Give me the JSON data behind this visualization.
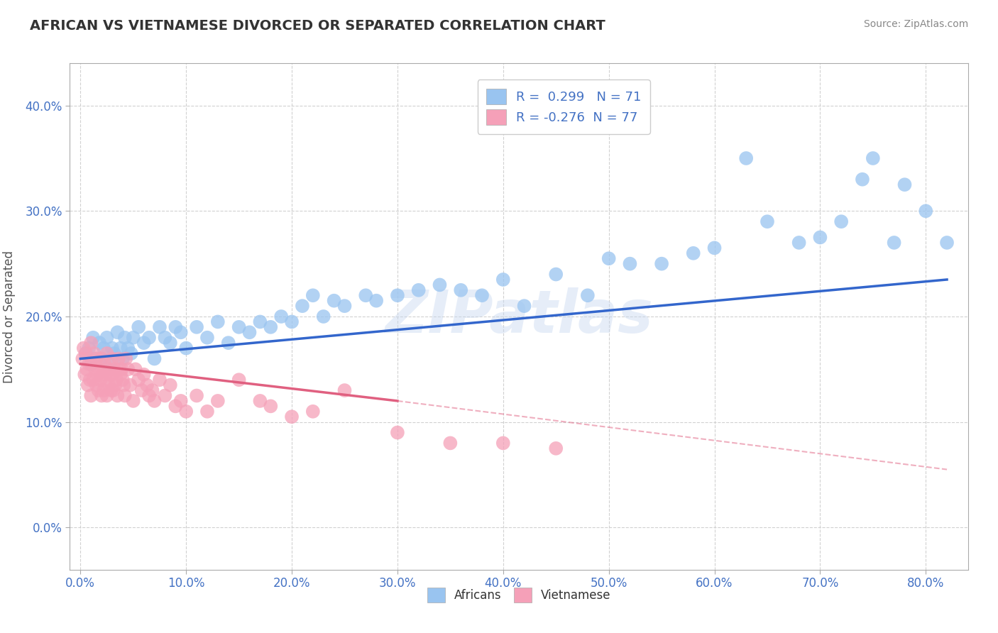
{
  "title": "AFRICAN VS VIETNAMESE DIVORCED OR SEPARATED CORRELATION CHART",
  "source": "Source: ZipAtlas.com",
  "xlabel_ticks": [
    0.0,
    10.0,
    20.0,
    30.0,
    40.0,
    50.0,
    60.0,
    70.0,
    80.0
  ],
  "ylabel_ticks": [
    0.0,
    10.0,
    20.0,
    30.0,
    40.0
  ],
  "xlim": [
    -1.0,
    84
  ],
  "ylim": [
    -4,
    44
  ],
  "african_color": "#99C4F0",
  "vietnamese_color": "#F5A0B8",
  "african_line_color": "#3366CC",
  "vietnamese_line_color": "#E06080",
  "legend_R1": "R =  0.299",
  "legend_N1": "N = 71",
  "legend_R2": "R = -0.276",
  "legend_N2": "N = 77",
  "watermark": "ZIPatlas",
  "african_scatter_x": [
    0.5,
    0.8,
    1.0,
    1.2,
    1.5,
    1.8,
    2.0,
    2.2,
    2.5,
    2.8,
    3.0,
    3.2,
    3.5,
    3.8,
    4.0,
    4.2,
    4.5,
    4.8,
    5.0,
    5.5,
    6.0,
    6.5,
    7.0,
    7.5,
    8.0,
    8.5,
    9.0,
    9.5,
    10.0,
    11.0,
    12.0,
    13.0,
    14.0,
    15.0,
    16.0,
    17.0,
    18.0,
    19.0,
    20.0,
    21.0,
    22.0,
    23.0,
    24.0,
    25.0,
    27.0,
    28.0,
    30.0,
    32.0,
    34.0,
    36.0,
    38.0,
    40.0,
    42.0,
    45.0,
    48.0,
    50.0,
    52.0,
    55.0,
    58.0,
    60.0,
    63.0,
    65.0,
    68.0,
    70.0,
    72.0,
    74.0,
    75.0,
    77.0,
    78.0,
    80.0,
    82.0
  ],
  "african_scatter_y": [
    16.5,
    17.0,
    15.5,
    18.0,
    16.0,
    17.5,
    16.0,
    17.0,
    18.0,
    15.5,
    17.0,
    16.5,
    18.5,
    17.0,
    16.0,
    18.0,
    17.0,
    16.5,
    18.0,
    19.0,
    17.5,
    18.0,
    16.0,
    19.0,
    18.0,
    17.5,
    19.0,
    18.5,
    17.0,
    19.0,
    18.0,
    19.5,
    17.5,
    19.0,
    18.5,
    19.5,
    19.0,
    20.0,
    19.5,
    21.0,
    22.0,
    20.0,
    21.5,
    21.0,
    22.0,
    21.5,
    22.0,
    22.5,
    23.0,
    22.5,
    22.0,
    23.5,
    21.0,
    24.0,
    22.0,
    25.5,
    25.0,
    25.0,
    26.0,
    26.5,
    35.0,
    29.0,
    27.0,
    27.5,
    29.0,
    33.0,
    35.0,
    27.0,
    32.5,
    30.0,
    27.0
  ],
  "vietnamese_scatter_x": [
    0.2,
    0.3,
    0.4,
    0.5,
    0.6,
    0.7,
    0.8,
    0.9,
    1.0,
    1.0,
    1.1,
    1.2,
    1.3,
    1.4,
    1.5,
    1.5,
    1.6,
    1.7,
    1.8,
    1.9,
    2.0,
    2.0,
    2.1,
    2.2,
    2.3,
    2.4,
    2.5,
    2.5,
    2.6,
    2.7,
    2.8,
    2.9,
    3.0,
    3.0,
    3.1,
    3.2,
    3.3,
    3.4,
    3.5,
    3.6,
    3.7,
    3.8,
    3.9,
    4.0,
    4.1,
    4.2,
    4.3,
    4.5,
    4.7,
    5.0,
    5.2,
    5.5,
    5.8,
    6.0,
    6.3,
    6.5,
    6.8,
    7.0,
    7.5,
    8.0,
    8.5,
    9.0,
    9.5,
    10.0,
    11.0,
    12.0,
    13.0,
    15.0,
    17.0,
    18.0,
    20.0,
    22.0,
    25.0,
    30.0,
    35.0,
    40.0,
    45.0
  ],
  "vietnamese_scatter_y": [
    16.0,
    17.0,
    14.5,
    16.5,
    15.0,
    13.5,
    15.5,
    14.0,
    12.5,
    17.5,
    15.5,
    14.0,
    16.5,
    15.0,
    13.5,
    16.0,
    14.5,
    13.0,
    15.0,
    14.0,
    12.5,
    16.0,
    14.5,
    13.0,
    15.5,
    14.0,
    12.5,
    16.5,
    15.0,
    13.5,
    14.5,
    13.0,
    16.0,
    14.5,
    13.0,
    15.0,
    13.5,
    14.0,
    12.5,
    16.0,
    15.0,
    14.5,
    15.0,
    14.0,
    13.5,
    12.5,
    16.0,
    15.0,
    13.5,
    12.0,
    15.0,
    14.0,
    13.0,
    14.5,
    13.5,
    12.5,
    13.0,
    12.0,
    14.0,
    12.5,
    13.5,
    11.5,
    12.0,
    11.0,
    12.5,
    11.0,
    12.0,
    14.0,
    12.0,
    11.5,
    10.5,
    11.0,
    13.0,
    9.0,
    8.0,
    8.0,
    7.5
  ],
  "african_line_x0": 0,
  "african_line_x1": 82,
  "african_line_y0": 16.0,
  "african_line_y1": 23.5,
  "vietnamese_line_x0": 0,
  "vietnamese_line_x1": 30,
  "vietnamese_line_y0": 15.5,
  "vietnamese_line_y1": 12.0,
  "vietnamese_dashed_x0": 30,
  "vietnamese_dashed_x1": 82,
  "vietnamese_dashed_y0": 12.0,
  "vietnamese_dashed_y1": 5.5
}
